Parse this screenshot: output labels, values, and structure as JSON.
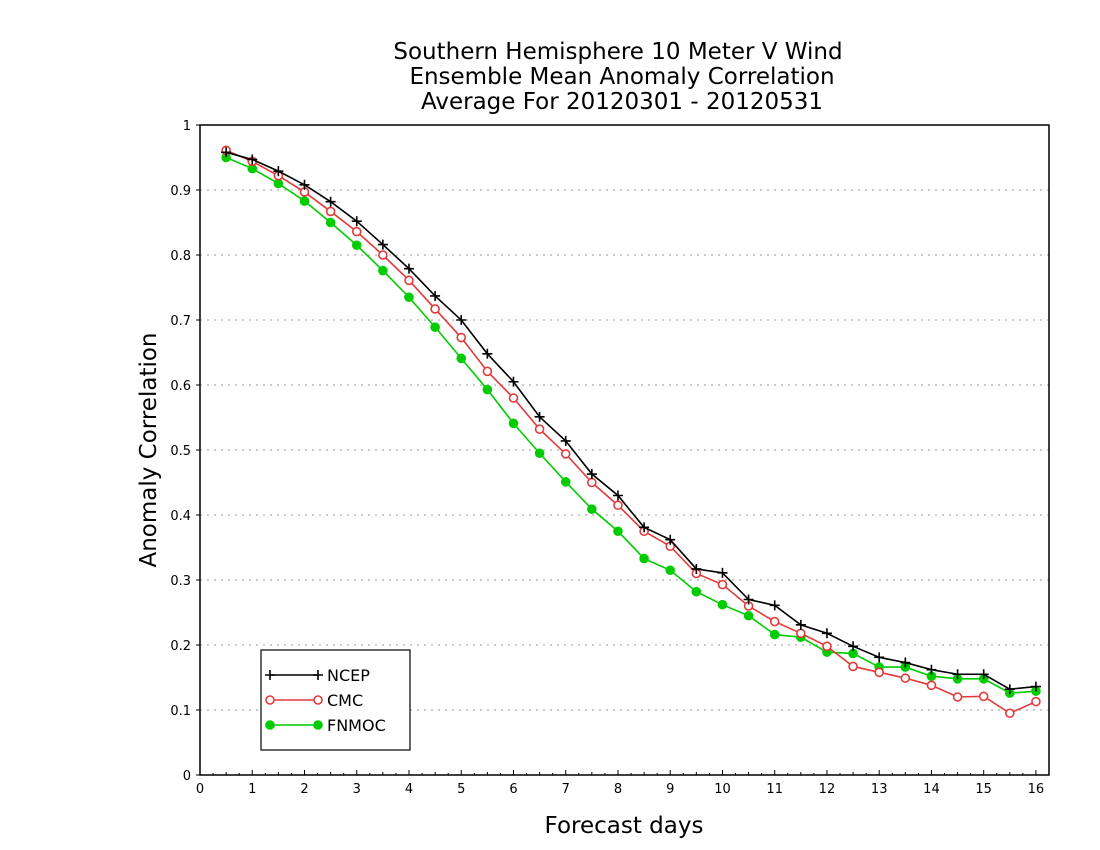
{
  "chart_data": {
    "type": "line",
    "title": [
      "Southern Hemisphere 10 Meter V Wind",
      "Ensemble Mean Anomaly Correlation",
      "Average For 20120301 - 20120531"
    ],
    "xlabel": "Forecast days",
    "ylabel": "Anomaly Correlation",
    "xlim": [
      0,
      16.25
    ],
    "ylim": [
      0,
      1
    ],
    "xticks": [
      "0",
      "1",
      "2",
      "3",
      "4",
      "5",
      "6",
      "7",
      "8",
      "9",
      "10",
      "11",
      "12",
      "13",
      "14",
      "15",
      "16"
    ],
    "yticks": [
      "0",
      "0.1",
      "0.2",
      "0.3",
      "0.4",
      "0.5",
      "0.6",
      "0.7",
      "0.8",
      "0.9",
      "1"
    ],
    "grid": "horizontal dotted",
    "legend_position": "bottom-left",
    "x": [
      0.5,
      1,
      1.5,
      2,
      2.5,
      3,
      3.5,
      4,
      4.5,
      5,
      5.5,
      6,
      6.5,
      7,
      7.5,
      8,
      8.5,
      9,
      9.5,
      10,
      10.5,
      11,
      11.5,
      12,
      12.5,
      13,
      13.5,
      14,
      14.5,
      15,
      15.5,
      16
    ],
    "series": [
      {
        "name": "NCEP",
        "color": "#000000",
        "marker": "plus",
        "values": [
          0.958,
          0.947,
          0.929,
          0.908,
          0.882,
          0.852,
          0.816,
          0.779,
          0.737,
          0.7,
          0.648,
          0.605,
          0.551,
          0.514,
          0.463,
          0.43,
          0.381,
          0.362,
          0.317,
          0.311,
          0.27,
          0.261,
          0.231,
          0.218,
          0.198,
          0.181,
          0.173,
          0.162,
          0.155,
          0.155,
          0.132,
          0.136
        ]
      },
      {
        "name": "CMC",
        "color": "#e23a3a",
        "marker": "open-circle",
        "values": [
          0.961,
          0.944,
          0.922,
          0.897,
          0.867,
          0.836,
          0.8,
          0.761,
          0.717,
          0.673,
          0.621,
          0.58,
          0.532,
          0.494,
          0.45,
          0.415,
          0.375,
          0.352,
          0.31,
          0.293,
          0.26,
          0.236,
          0.218,
          0.198,
          0.167,
          0.158,
          0.149,
          0.138,
          0.12,
          0.121,
          0.095,
          0.113
        ]
      },
      {
        "name": "FNMOC",
        "color": "#00cc00",
        "marker": "filled-circle",
        "values": [
          0.95,
          0.933,
          0.91,
          0.883,
          0.85,
          0.815,
          0.776,
          0.735,
          0.689,
          0.641,
          0.593,
          0.541,
          0.495,
          0.451,
          0.409,
          0.375,
          0.333,
          0.315,
          0.282,
          0.262,
          0.245,
          0.216,
          0.212,
          0.189,
          0.187,
          0.166,
          0.166,
          0.152,
          0.148,
          0.148,
          0.126,
          0.129
        ]
      }
    ]
  }
}
